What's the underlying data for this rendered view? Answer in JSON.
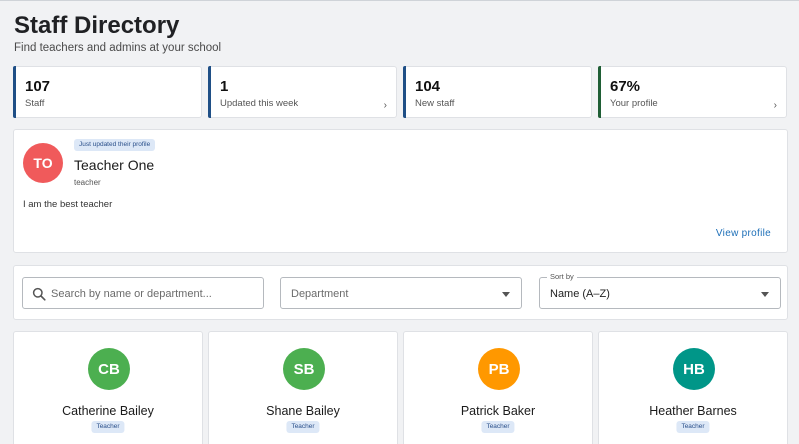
{
  "header": {
    "title": "Staff Directory",
    "subtitle": "Find teachers and admins at your school"
  },
  "stats": [
    {
      "value": "107",
      "label": "Staff",
      "accent": "#1f4f86",
      "has_arrow": false
    },
    {
      "value": "1",
      "label": "Updated this week",
      "accent": "#1f4f86",
      "has_arrow": true
    },
    {
      "value": "104",
      "label": "New staff",
      "accent": "#1f4f86",
      "has_arrow": false
    },
    {
      "value": "67%",
      "label": "Your profile",
      "accent": "#1f5e35",
      "has_arrow": true
    }
  ],
  "featured_profile": {
    "badge": "Just updated their profile",
    "initials": "TO",
    "name": "Teacher One",
    "role": "teacher",
    "bio": "I am the best teacher",
    "link_label": "View profile",
    "avatar_color": "#f05a5b"
  },
  "filters": {
    "search_placeholder": "Search by name or department...",
    "department_placeholder": "Department",
    "sort_label": "Sort by",
    "sort_value": "Name (A–Z)"
  },
  "staff": [
    {
      "initials": "CB",
      "name": "Catherine Bailey",
      "role": "Teacher",
      "color": "#4caf50"
    },
    {
      "initials": "SB",
      "name": "Shane Bailey",
      "role": "Teacher",
      "color": "#4caf50"
    },
    {
      "initials": "PB",
      "name": "Patrick Baker",
      "role": "Teacher",
      "color": "#ff9800"
    },
    {
      "initials": "HB",
      "name": "Heather Barnes",
      "role": "Teacher",
      "color": "#009688"
    }
  ]
}
